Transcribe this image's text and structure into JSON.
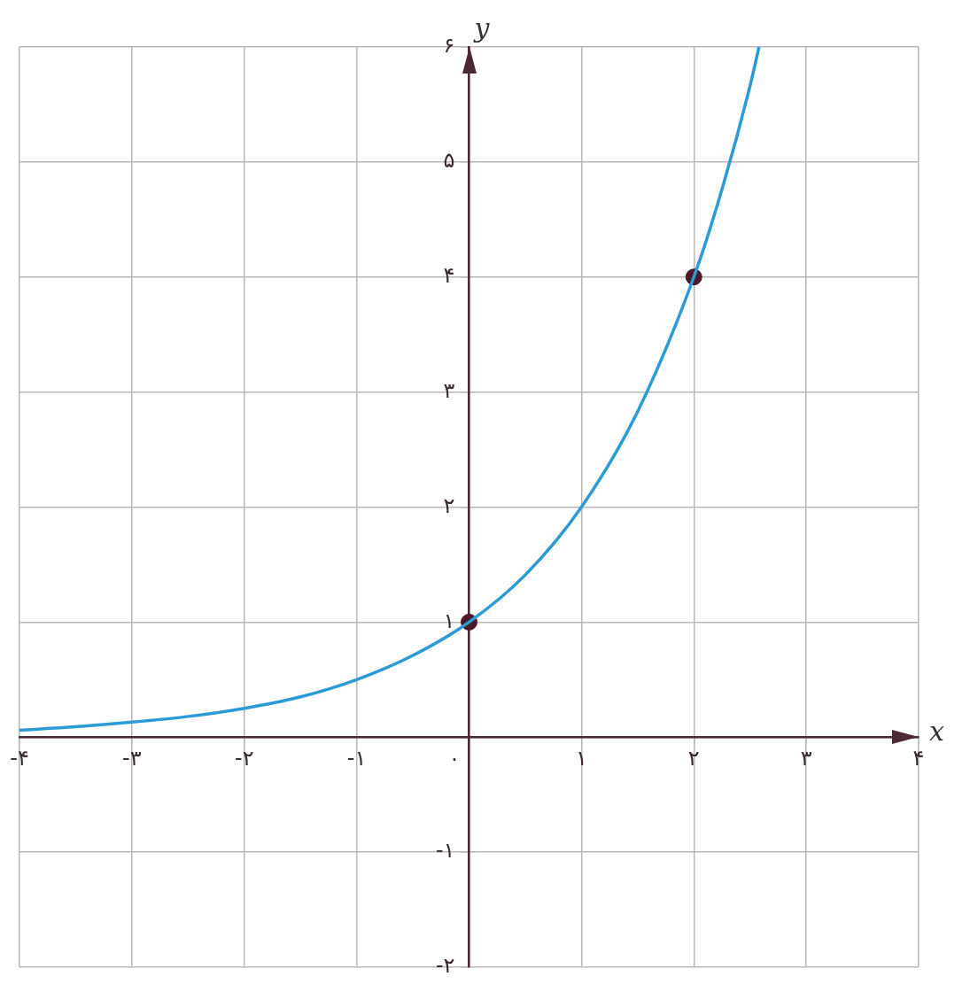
{
  "chart_data": {
    "type": "line",
    "xlabel": "x",
    "ylabel": "y",
    "xlim": [
      -4,
      4
    ],
    "ylim": [
      -2,
      6
    ],
    "xticks": [
      {
        "value": -4,
        "label": "-۴"
      },
      {
        "value": -3,
        "label": "-۳"
      },
      {
        "value": -2,
        "label": "-۲"
      },
      {
        "value": -1,
        "label": "-۱"
      },
      {
        "value": 0,
        "label": "۰"
      },
      {
        "value": 1,
        "label": "۱"
      },
      {
        "value": 2,
        "label": "۲"
      },
      {
        "value": 3,
        "label": "۳"
      },
      {
        "value": 4,
        "label": "۴"
      }
    ],
    "yticks": [
      {
        "value": -2,
        "label": "-۲"
      },
      {
        "value": -1,
        "label": "-۱"
      },
      {
        "value": 0,
        "label": null
      },
      {
        "value": 1,
        "label": "۱"
      },
      {
        "value": 2,
        "label": "۲"
      },
      {
        "value": 3,
        "label": "۳"
      },
      {
        "value": 4,
        "label": "۴"
      },
      {
        "value": 5,
        "label": "۵"
      },
      {
        "value": 6,
        "label": "۶"
      }
    ],
    "grid": true,
    "legend": false,
    "series": [
      {
        "type": "line",
        "color": "#2b9bd6",
        "marker": "none",
        "line_style": "solid",
        "x": [
          -4,
          -3.5,
          -3,
          -2.5,
          -2,
          -1.5,
          -1,
          -0.5,
          0,
          0.5,
          1,
          1.5,
          2,
          2.25,
          2.5,
          2.58
        ],
        "values": [
          0.06,
          0.09,
          0.13,
          0.18,
          0.25,
          0.35,
          0.5,
          0.71,
          1,
          1.41,
          2,
          2.83,
          4,
          4.76,
          5.66,
          6
        ]
      },
      {
        "type": "scatter",
        "color": "#4a1a28",
        "marker": "circle",
        "x": [
          0,
          2
        ],
        "values": [
          1,
          4
        ]
      }
    ]
  }
}
